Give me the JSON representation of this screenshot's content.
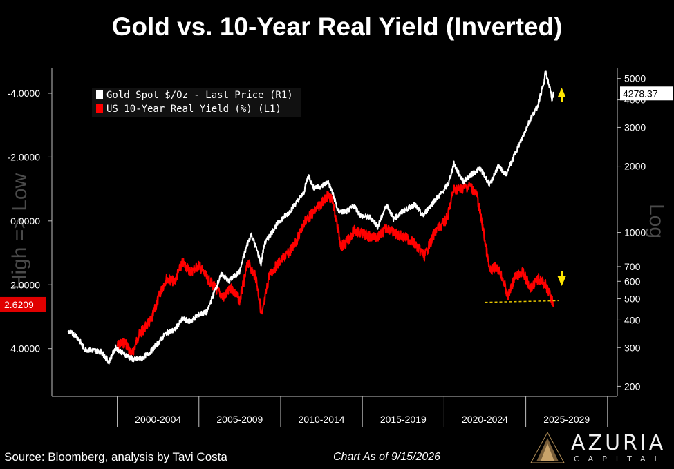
{
  "title": "Gold vs. 10-Year Real Yield (Inverted)",
  "footer": {
    "source": "Source: Bloomberg, analysis by Tavi Costa",
    "date": "Chart As of 9/15/2026"
  },
  "logo": {
    "name": "AZURIA",
    "sub": "CAPITAL"
  },
  "chart_data": {
    "type": "line",
    "x_tick_labels": [
      "2000-2004",
      "2005-2009",
      "2010-2014",
      "2015-2019",
      "2020-2024",
      "2025-2029"
    ],
    "legend_position": "top-left",
    "left_axis_watermark": "High => Low",
    "right_axis_watermark": "Log",
    "left_axis": {
      "inverted": true,
      "range": [
        5.5,
        -4.8
      ],
      "ticks": [
        "-4.0000",
        "-2.0000",
        "0.0000",
        "2.0000",
        "4.0000"
      ],
      "tick_values": [
        -4,
        -2,
        0,
        2,
        4
      ]
    },
    "right_axis": {
      "scale": "log",
      "range": [
        180,
        5600
      ],
      "ticks": [
        "5000",
        "4000",
        "3000",
        "2000",
        "1000",
        "700",
        "600",
        "500",
        "400",
        "300",
        "200"
      ],
      "tick_values": [
        5000,
        4000,
        3000,
        2000,
        1000,
        700,
        600,
        500,
        400,
        300,
        200
      ]
    },
    "last_values": {
      "gold": "4278.37",
      "real_yield": "2.6209"
    },
    "series": [
      {
        "name": "Gold Spot $/Oz - Last Price (R1)",
        "axis": "right",
        "color": "#ffffff",
        "points": [
          [
            1997.0,
            355
          ],
          [
            1997.5,
            340
          ],
          [
            1998.0,
            295
          ],
          [
            1998.5,
            292
          ],
          [
            1999.0,
            288
          ],
          [
            1999.5,
            258
          ],
          [
            1999.9,
            300
          ],
          [
            2000.5,
            278
          ],
          [
            2001.0,
            265
          ],
          [
            2001.5,
            268
          ],
          [
            2002.0,
            285
          ],
          [
            2002.5,
            315
          ],
          [
            2003.0,
            350
          ],
          [
            2003.5,
            360
          ],
          [
            2004.0,
            405
          ],
          [
            2004.5,
            395
          ],
          [
            2005.0,
            425
          ],
          [
            2005.5,
            435
          ],
          [
            2006.0,
            550
          ],
          [
            2006.4,
            650
          ],
          [
            2006.8,
            600
          ],
          [
            2007.5,
            665
          ],
          [
            2008.0,
            900
          ],
          [
            2008.2,
            980
          ],
          [
            2008.8,
            720
          ],
          [
            2009.0,
            880
          ],
          [
            2009.9,
            1120
          ],
          [
            2010.5,
            1230
          ],
          [
            2011.0,
            1380
          ],
          [
            2011.4,
            1500
          ],
          [
            2011.7,
            1820
          ],
          [
            2012.0,
            1600
          ],
          [
            2012.5,
            1620
          ],
          [
            2012.9,
            1700
          ],
          [
            2013.3,
            1420
          ],
          [
            2013.5,
            1250
          ],
          [
            2014.0,
            1240
          ],
          [
            2014.5,
            1320
          ],
          [
            2014.9,
            1190
          ],
          [
            2015.5,
            1170
          ],
          [
            2015.95,
            1060
          ],
          [
            2016.5,
            1340
          ],
          [
            2016.9,
            1150
          ],
          [
            2017.5,
            1250
          ],
          [
            2018.2,
            1340
          ],
          [
            2018.7,
            1190
          ],
          [
            2019.5,
            1420
          ],
          [
            2019.9,
            1520
          ],
          [
            2020.3,
            1690
          ],
          [
            2020.6,
            2050
          ],
          [
            2020.9,
            1850
          ],
          [
            2021.2,
            1700
          ],
          [
            2021.6,
            1820
          ],
          [
            2022.2,
            1950
          ],
          [
            2022.8,
            1640
          ],
          [
            2023.3,
            1990
          ],
          [
            2023.8,
            1830
          ],
          [
            2024.2,
            2150
          ],
          [
            2024.8,
            2700
          ],
          [
            2025.3,
            3300
          ],
          [
            2025.7,
            3700
          ],
          [
            2025.95,
            4350
          ],
          [
            2026.1,
            4700
          ],
          [
            2026.2,
            5350
          ],
          [
            2026.35,
            4900
          ],
          [
            2026.5,
            4400
          ],
          [
            2026.6,
            4050
          ],
          [
            2026.7,
            4278.37
          ]
        ]
      },
      {
        "name": "US 10-Year Real Yield (%) (L1)",
        "axis": "left",
        "color": "#ff0000",
        "points": [
          [
            2000.0,
            3.9
          ],
          [
            2000.5,
            3.8
          ],
          [
            2000.9,
            4.2
          ],
          [
            2001.3,
            3.6
          ],
          [
            2001.6,
            3.4
          ],
          [
            2002.1,
            3.1
          ],
          [
            2002.6,
            2.3
          ],
          [
            2003.0,
            1.8
          ],
          [
            2003.5,
            1.9
          ],
          [
            2004.0,
            1.3
          ],
          [
            2004.5,
            1.6
          ],
          [
            2005.0,
            1.4
          ],
          [
            2005.5,
            1.8
          ],
          [
            2006.0,
            2.1
          ],
          [
            2006.5,
            2.4
          ],
          [
            2007.0,
            2.1
          ],
          [
            2007.5,
            2.5
          ],
          [
            2008.0,
            1.3
          ],
          [
            2008.5,
            1.8
          ],
          [
            2008.85,
            3.0
          ],
          [
            2009.3,
            1.7
          ],
          [
            2009.9,
            1.3
          ],
          [
            2010.5,
            1.0
          ],
          [
            2011.0,
            0.6
          ],
          [
            2011.5,
            0.0
          ],
          [
            2011.9,
            -0.2
          ],
          [
            2012.4,
            -0.5
          ],
          [
            2012.9,
            -0.8
          ],
          [
            2013.2,
            -0.6
          ],
          [
            2013.7,
            0.8
          ],
          [
            2014.0,
            0.7
          ],
          [
            2014.5,
            0.3
          ],
          [
            2015.0,
            0.4
          ],
          [
            2015.5,
            0.5
          ],
          [
            2016.0,
            0.5
          ],
          [
            2016.5,
            0.2
          ],
          [
            2017.0,
            0.4
          ],
          [
            2017.5,
            0.5
          ],
          [
            2018.0,
            0.6
          ],
          [
            2018.8,
            1.1
          ],
          [
            2019.5,
            0.3
          ],
          [
            2019.9,
            0.1
          ],
          [
            2020.2,
            -0.1
          ],
          [
            2020.6,
            -1.0
          ],
          [
            2021.0,
            -1.0
          ],
          [
            2021.6,
            -1.1
          ],
          [
            2022.0,
            -0.8
          ],
          [
            2022.4,
            0.3
          ],
          [
            2022.8,
            1.6
          ],
          [
            2023.2,
            1.4
          ],
          [
            2023.6,
            1.8
          ],
          [
            2023.9,
            2.4
          ],
          [
            2024.3,
            1.8
          ],
          [
            2024.8,
            1.6
          ],
          [
            2025.3,
            2.1
          ],
          [
            2025.8,
            1.8
          ],
          [
            2026.2,
            2.0
          ],
          [
            2026.5,
            2.35
          ],
          [
            2026.7,
            2.6209
          ]
        ]
      }
    ]
  }
}
